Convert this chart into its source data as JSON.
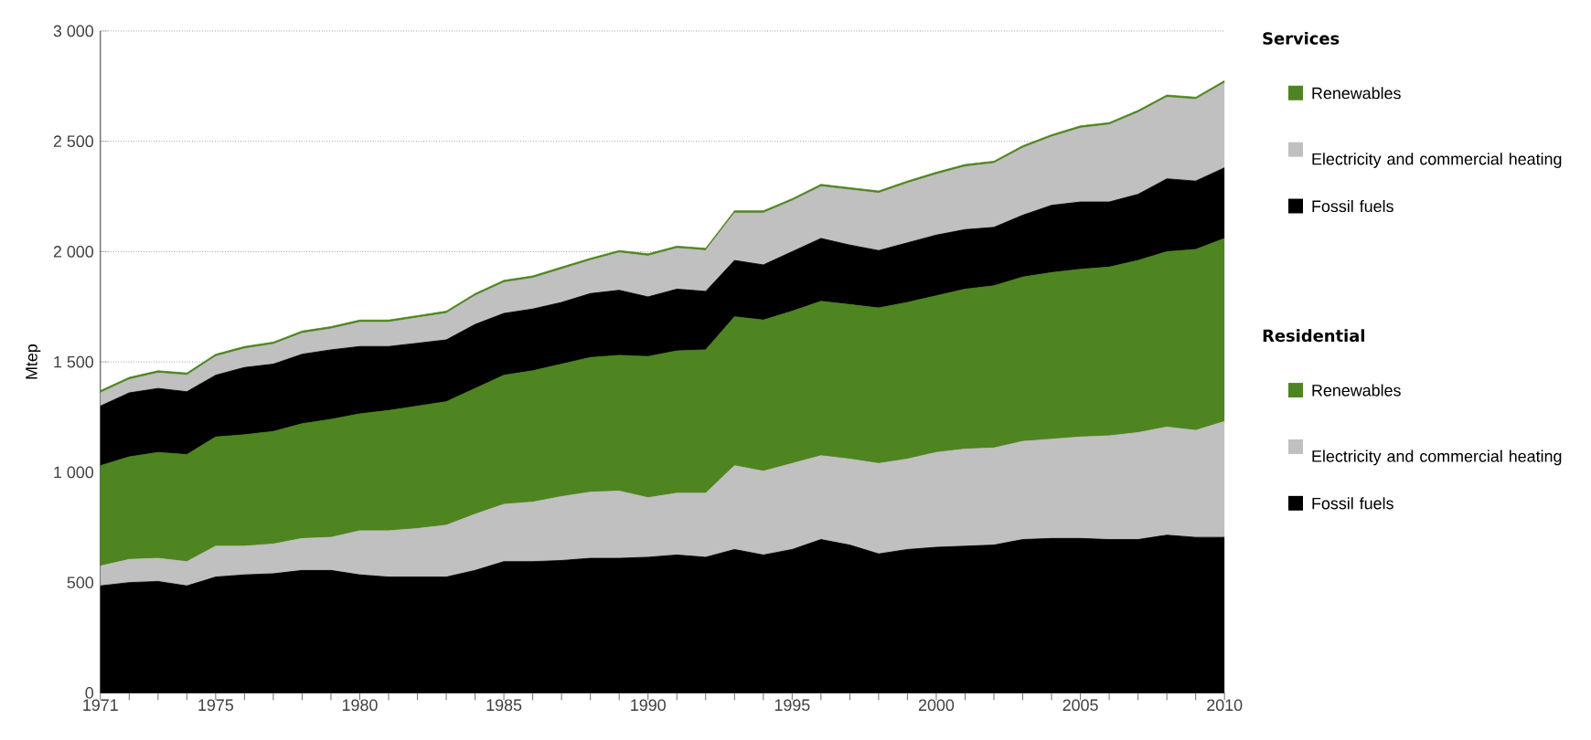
{
  "chart_data": {
    "type": "area",
    "stacked": true,
    "ylabel": "Mtep",
    "legend": "right",
    "grid": "y",
    "x": [
      1971,
      1972,
      1973,
      1974,
      1975,
      1976,
      1977,
      1978,
      1979,
      1980,
      1981,
      1982,
      1983,
      1984,
      1985,
      1986,
      1987,
      1988,
      1989,
      1990,
      1991,
      1992,
      1993,
      1994,
      1995,
      1996,
      1997,
      1998,
      1999,
      2000,
      2001,
      2002,
      2003,
      2004,
      2005,
      2006,
      2007,
      2008,
      2009,
      2010
    ],
    "xlim": [
      1971,
      2010
    ],
    "xticks": [
      1971,
      1975,
      1980,
      1985,
      1990,
      1995,
      2000,
      2005,
      2010
    ],
    "ylim": [
      0,
      3000
    ],
    "yticks": [
      0,
      500,
      {
        "value": 1000,
        "label": "1 000"
      },
      {
        "value": 1500,
        "label": "1 500"
      },
      {
        "value": 2000,
        "label": "2 000"
      },
      {
        "value": 2500,
        "label": "2 500"
      },
      {
        "value": 3000,
        "label": "3 000"
      }
    ],
    "annotations": [
      "Services",
      "Residential"
    ],
    "series": [
      {
        "name": "Fossil fuels",
        "color": "#000000",
        "values": [
          485,
          500,
          505,
          485,
          525,
          535,
          540,
          555,
          555,
          535,
          525,
          525,
          525,
          555,
          595,
          595,
          600,
          610,
          610,
          615,
          625,
          615,
          650,
          625,
          650,
          695,
          670,
          630,
          650,
          660,
          665,
          670,
          695,
          700,
          700,
          695,
          695,
          715,
          705,
          705
        ]
      },
      {
        "name": "Electricity and commercial heating",
        "color": "#c0c0c0",
        "values": [
          90,
          105,
          105,
          110,
          140,
          130,
          135,
          145,
          150,
          200,
          210,
          220,
          235,
          255,
          260,
          270,
          290,
          300,
          305,
          270,
          280,
          290,
          380,
          380,
          390,
          380,
          390,
          410,
          410,
          430,
          440,
          440,
          445,
          450,
          460,
          470,
          485,
          490,
          485,
          525
        ]
      },
      {
        "name": "Renewables",
        "color": "#4e8520",
        "values": [
          455,
          465,
          480,
          485,
          495,
          505,
          510,
          520,
          535,
          530,
          545,
          555,
          560,
          570,
          585,
          595,
          600,
          610,
          615,
          640,
          645,
          650,
          675,
          685,
          690,
          700,
          700,
          705,
          710,
          710,
          725,
          735,
          745,
          755,
          760,
          765,
          780,
          795,
          820,
          830
        ]
      },
      {
        "name": "Fossil fuels",
        "color": "#000000",
        "values": [
          270,
          290,
          290,
          285,
          280,
          305,
          305,
          315,
          315,
          305,
          290,
          285,
          280,
          290,
          280,
          280,
          280,
          290,
          295,
          270,
          280,
          265,
          255,
          250,
          270,
          285,
          270,
          260,
          270,
          275,
          270,
          265,
          280,
          305,
          305,
          295,
          300,
          330,
          310,
          320
        ]
      },
      {
        "name": "Electricity and commercial heating",
        "color": "#c0c0c0",
        "values": [
          60,
          60,
          70,
          75,
          85,
          85,
          90,
          95,
          95,
          110,
          110,
          115,
          120,
          130,
          140,
          140,
          150,
          150,
          170,
          185,
          185,
          185,
          215,
          235,
          230,
          235,
          250,
          260,
          270,
          275,
          285,
          290,
          305,
          310,
          335,
          350,
          370,
          370,
          370,
          385
        ]
      },
      {
        "name": "Renewables",
        "color": "#4e8520",
        "values": [
          10,
          10,
          10,
          10,
          10,
          10,
          10,
          10,
          10,
          10,
          10,
          10,
          10,
          10,
          10,
          10,
          10,
          10,
          10,
          10,
          10,
          10,
          10,
          10,
          10,
          10,
          10,
          10,
          10,
          10,
          10,
          10,
          10,
          10,
          10,
          10,
          10,
          10,
          10,
          10
        ]
      }
    ]
  }
}
